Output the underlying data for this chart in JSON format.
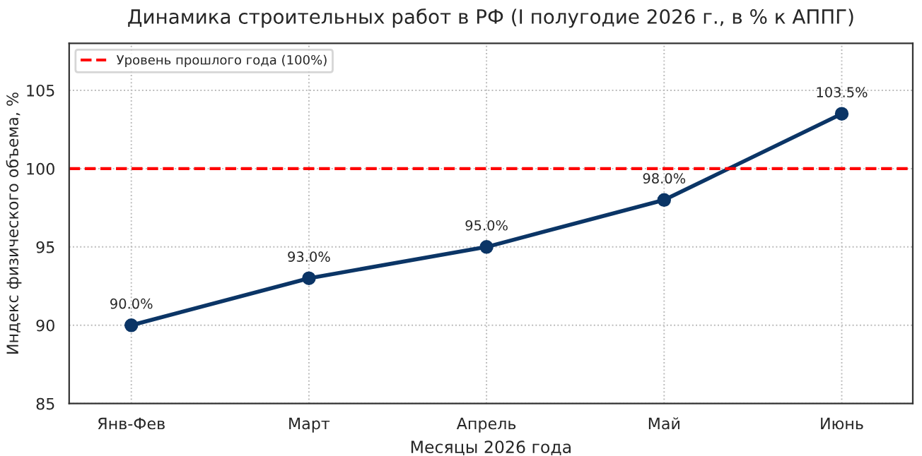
{
  "chart_data": {
    "type": "line",
    "title": "Динамика строительных работ в РФ (I полугодие 2026 г., в % к АППГ)",
    "xlabel": "Месяцы 2026 года",
    "ylabel": "Индекс физического объема, %",
    "categories": [
      "Янв-Фев",
      "Март",
      "Апрель",
      "Май",
      "Июнь"
    ],
    "series": [
      {
        "color": "#0b3566",
        "values": [
          90,
          93,
          95,
          98,
          103.5
        ],
        "value_labels": [
          "90.0%",
          "93.0%",
          "95.0%",
          "98.0%",
          "103.5%"
        ]
      }
    ],
    "ylim": [
      85,
      108
    ],
    "yticks": [
      85,
      90,
      95,
      100,
      105
    ],
    "ref_lines": [
      {
        "axis": "y",
        "value": 100,
        "label": "Уровень прошлого года (100%)",
        "color": "#ff0000",
        "line_style": "dashed"
      }
    ],
    "grid": true,
    "legend": "top left",
    "marker": "circle",
    "line_style": "solid"
  }
}
